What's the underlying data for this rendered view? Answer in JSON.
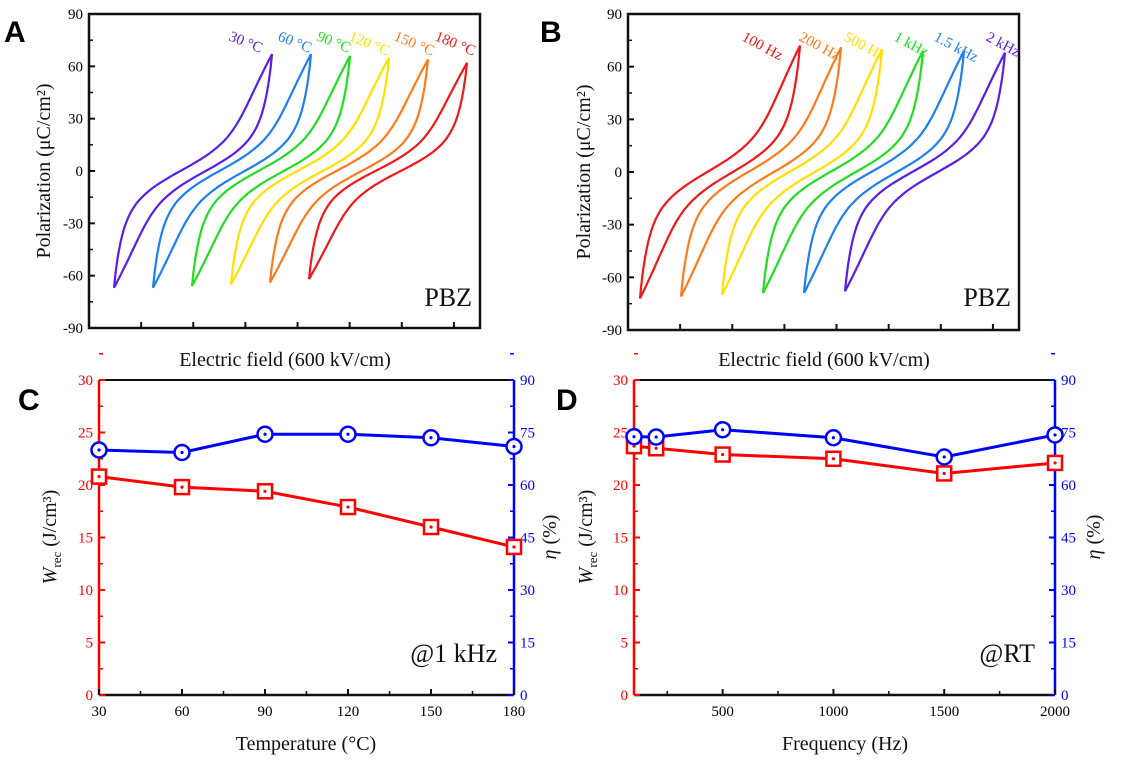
{
  "chart_data": [
    {
      "type": "line",
      "panel": "A",
      "xlabel": "Electric field (600 kV/cm)",
      "ylabel": "Polarization (μC/cm²)",
      "ylim": [
        -90,
        90
      ],
      "yticks": [
        -90,
        -60,
        -30,
        0,
        30,
        60,
        90
      ],
      "annotation": "PBZ",
      "series": [
        {
          "name": "30 °C",
          "color": "#5a1ee6",
          "p_max": 67
        },
        {
          "name": "60 °C",
          "color": "#1e7ff0",
          "p_max": 67
        },
        {
          "name": "90 °C",
          "color": "#22dd22",
          "p_max": 66
        },
        {
          "name": "120 °C",
          "color": "#ffe000",
          "p_max": 65
        },
        {
          "name": "150 °C",
          "color": "#ff7a1a",
          "p_max": 64
        },
        {
          "name": "180 °C",
          "color": "#f01818",
          "p_max": 62
        }
      ]
    },
    {
      "type": "line",
      "panel": "B",
      "xlabel": "Electric field (600 kV/cm)",
      "ylabel": "Polarization (μC/cm²)",
      "ylim": [
        -90,
        90
      ],
      "yticks": [
        -90,
        -60,
        -30,
        0,
        30,
        60,
        90
      ],
      "annotation": "PBZ",
      "series": [
        {
          "name": "100 Hz",
          "color": "#f01818",
          "p_max": 72
        },
        {
          "name": "200 Hz",
          "color": "#ff7a1a",
          "p_max": 71
        },
        {
          "name": "500 Hz",
          "color": "#ffe000",
          "p_max": 70
        },
        {
          "name": "1 kHz",
          "color": "#22dd22",
          "p_max": 69
        },
        {
          "name": "1.5 kHz",
          "color": "#1e7ff0",
          "p_max": 69
        },
        {
          "name": "2 kHz",
          "color": "#5a1ee6",
          "p_max": 68
        }
      ]
    },
    {
      "type": "line",
      "panel": "C",
      "x": [
        30,
        60,
        90,
        120,
        150,
        180
      ],
      "xlim": [
        30,
        180
      ],
      "xticks": [
        30,
        60,
        90,
        120,
        150,
        180
      ],
      "xlabel": "Temperature (°C)",
      "ylabel_left": {
        "main": "W",
        "sub": "rec",
        "unit": " (J/cm³)"
      },
      "ylabel_right": {
        "main": "η",
        "unit": " (%)"
      },
      "ylim_left": [
        0,
        30
      ],
      "yticks_left": [
        0,
        5,
        10,
        15,
        20,
        25,
        30
      ],
      "ylim_right": [
        0,
        90
      ],
      "yticks_right": [
        0,
        15,
        30,
        45,
        60,
        75,
        90
      ],
      "annotation": "@1 kHz",
      "series": [
        {
          "axis": "left",
          "color": "#ff0000",
          "marker": "square",
          "values": [
            20.8,
            19.8,
            19.4,
            17.9,
            16.0,
            14.1
          ]
        },
        {
          "axis": "right",
          "color": "#0000ff",
          "marker": "circle",
          "values": [
            70.0,
            69.3,
            74.5,
            74.5,
            73.5,
            71.0
          ]
        }
      ]
    },
    {
      "type": "line",
      "panel": "D",
      "x": [
        100,
        200,
        500,
        1000,
        1500,
        2000
      ],
      "xlim": [
        100,
        2000
      ],
      "xticks": [
        500,
        1000,
        1500,
        2000
      ],
      "xlabel": "Frequency (Hz)",
      "ylabel_left": {
        "main": "W",
        "sub": "rec",
        "unit": " (J/cm³)"
      },
      "ylabel_right": {
        "main": "η",
        "unit": " (%)"
      },
      "ylim_left": [
        0,
        30
      ],
      "yticks_left": [
        0,
        5,
        10,
        15,
        20,
        25,
        30
      ],
      "ylim_right": [
        0,
        90
      ],
      "yticks_right": [
        0,
        15,
        30,
        45,
        60,
        75,
        90
      ],
      "annotation": "@RT",
      "series": [
        {
          "axis": "left",
          "color": "#ff0000",
          "marker": "square",
          "values": [
            23.7,
            23.5,
            22.9,
            22.5,
            21.1,
            22.1
          ]
        },
        {
          "axis": "right",
          "color": "#0000ff",
          "marker": "circle",
          "values": [
            73.8,
            73.7,
            75.8,
            73.5,
            68.0,
            74.3
          ]
        }
      ]
    }
  ]
}
